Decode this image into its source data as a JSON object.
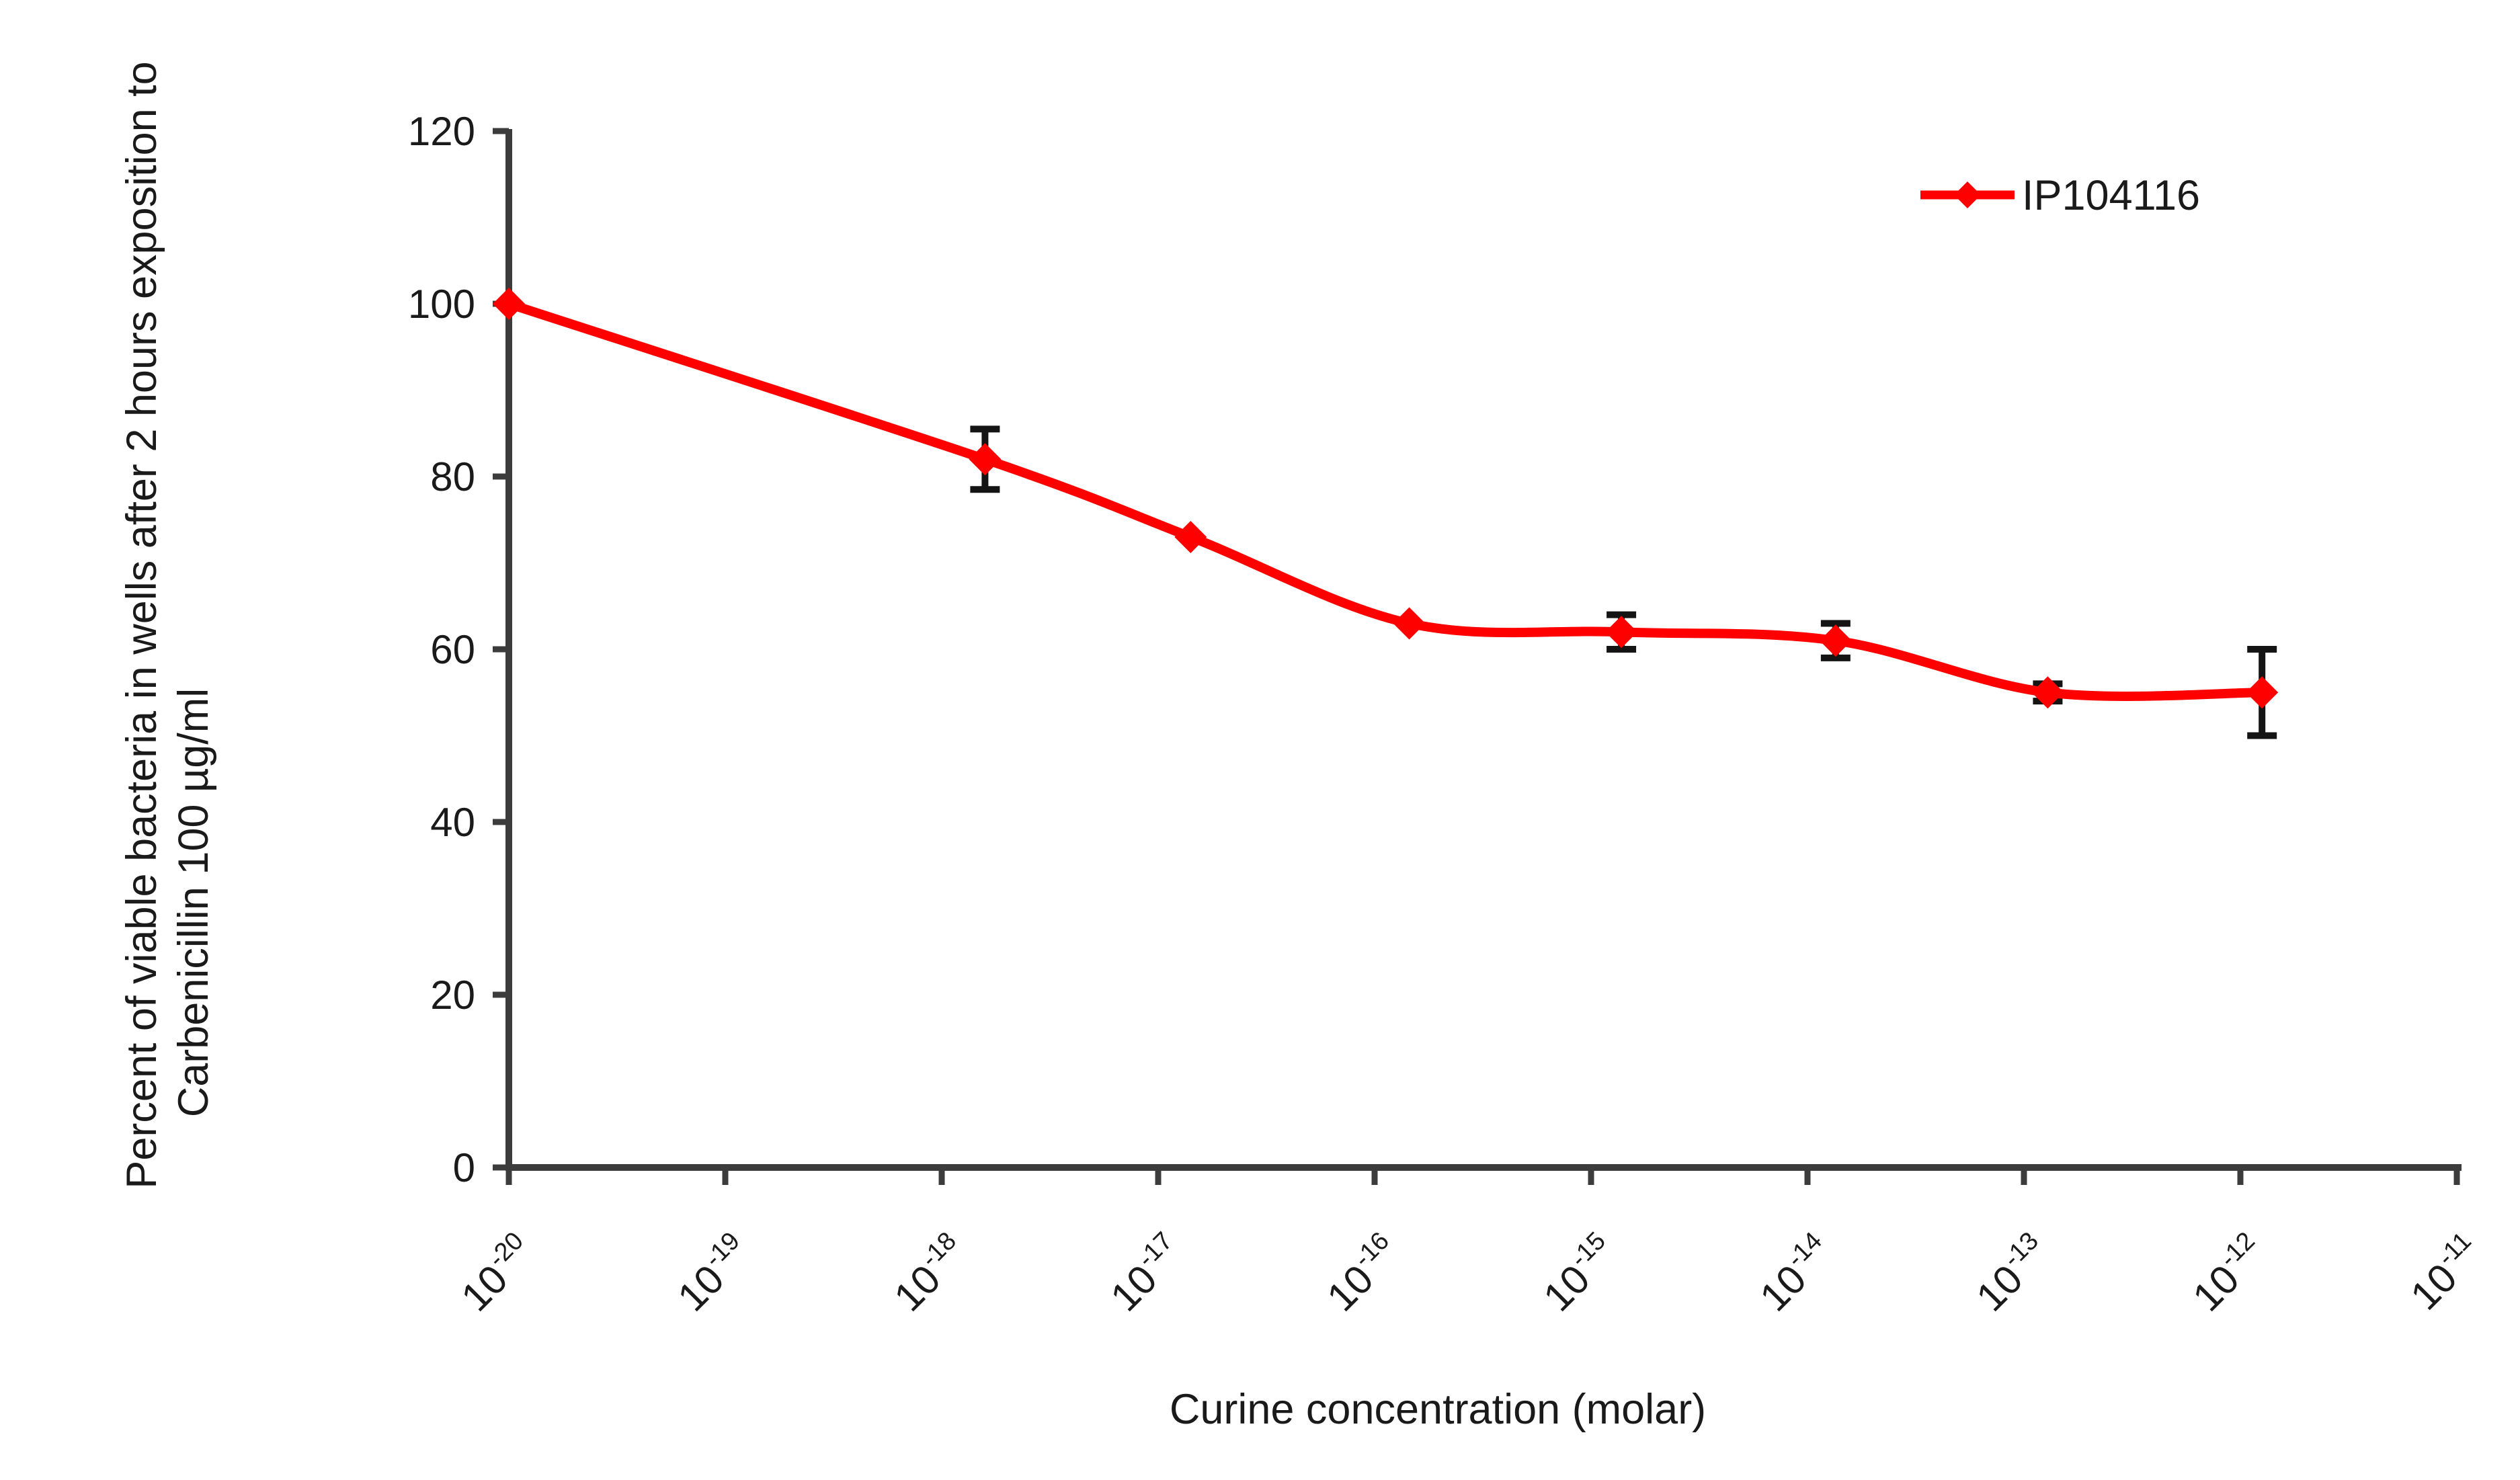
{
  "page": {
    "background": "#ffffff"
  },
  "chart_data": {
    "type": "line",
    "title": "",
    "xlabel": "Curine concentration (molar)",
    "ylabel_line1": "Percent of viable bacteria in wells after 2 hours exposition to",
    "ylabel_line2": "Carbenicillin 100 µg/ml",
    "x_axis": {
      "scale": "log10",
      "tick_base": "10",
      "tick_exponents": [
        "-20",
        "-19",
        "-18",
        "-17",
        "-16",
        "-15",
        "-14",
        "-13",
        "-12",
        "-11"
      ],
      "range_log10": [
        -20,
        -11
      ]
    },
    "y_axis": {
      "min": 0,
      "max": 120,
      "step": 20,
      "ticks": [
        0,
        20,
        40,
        60,
        80,
        100,
        120
      ]
    },
    "grid": false,
    "legend": {
      "label": "IP104116",
      "position": "top-right"
    },
    "series": [
      {
        "name": "IP104116",
        "color": "#ff0000",
        "marker": "diamond",
        "error_bar_color": "#141414",
        "points": [
          {
            "x_log10": -20.0,
            "y": 100,
            "yerr": 0
          },
          {
            "x_log10": -17.8,
            "y": 82,
            "yerr": 3.5
          },
          {
            "x_log10": -16.85,
            "y": 73,
            "yerr": 0
          },
          {
            "x_log10": -15.84,
            "y": 63,
            "yerr": 0
          },
          {
            "x_log10": -14.86,
            "y": 62,
            "yerr": 2
          },
          {
            "x_log10": -13.87,
            "y": 61,
            "yerr": 2
          },
          {
            "x_log10": -12.89,
            "y": 55,
            "yerr": 1
          },
          {
            "x_log10": -11.9,
            "y": 55,
            "yerr": 5
          }
        ]
      }
    ]
  }
}
